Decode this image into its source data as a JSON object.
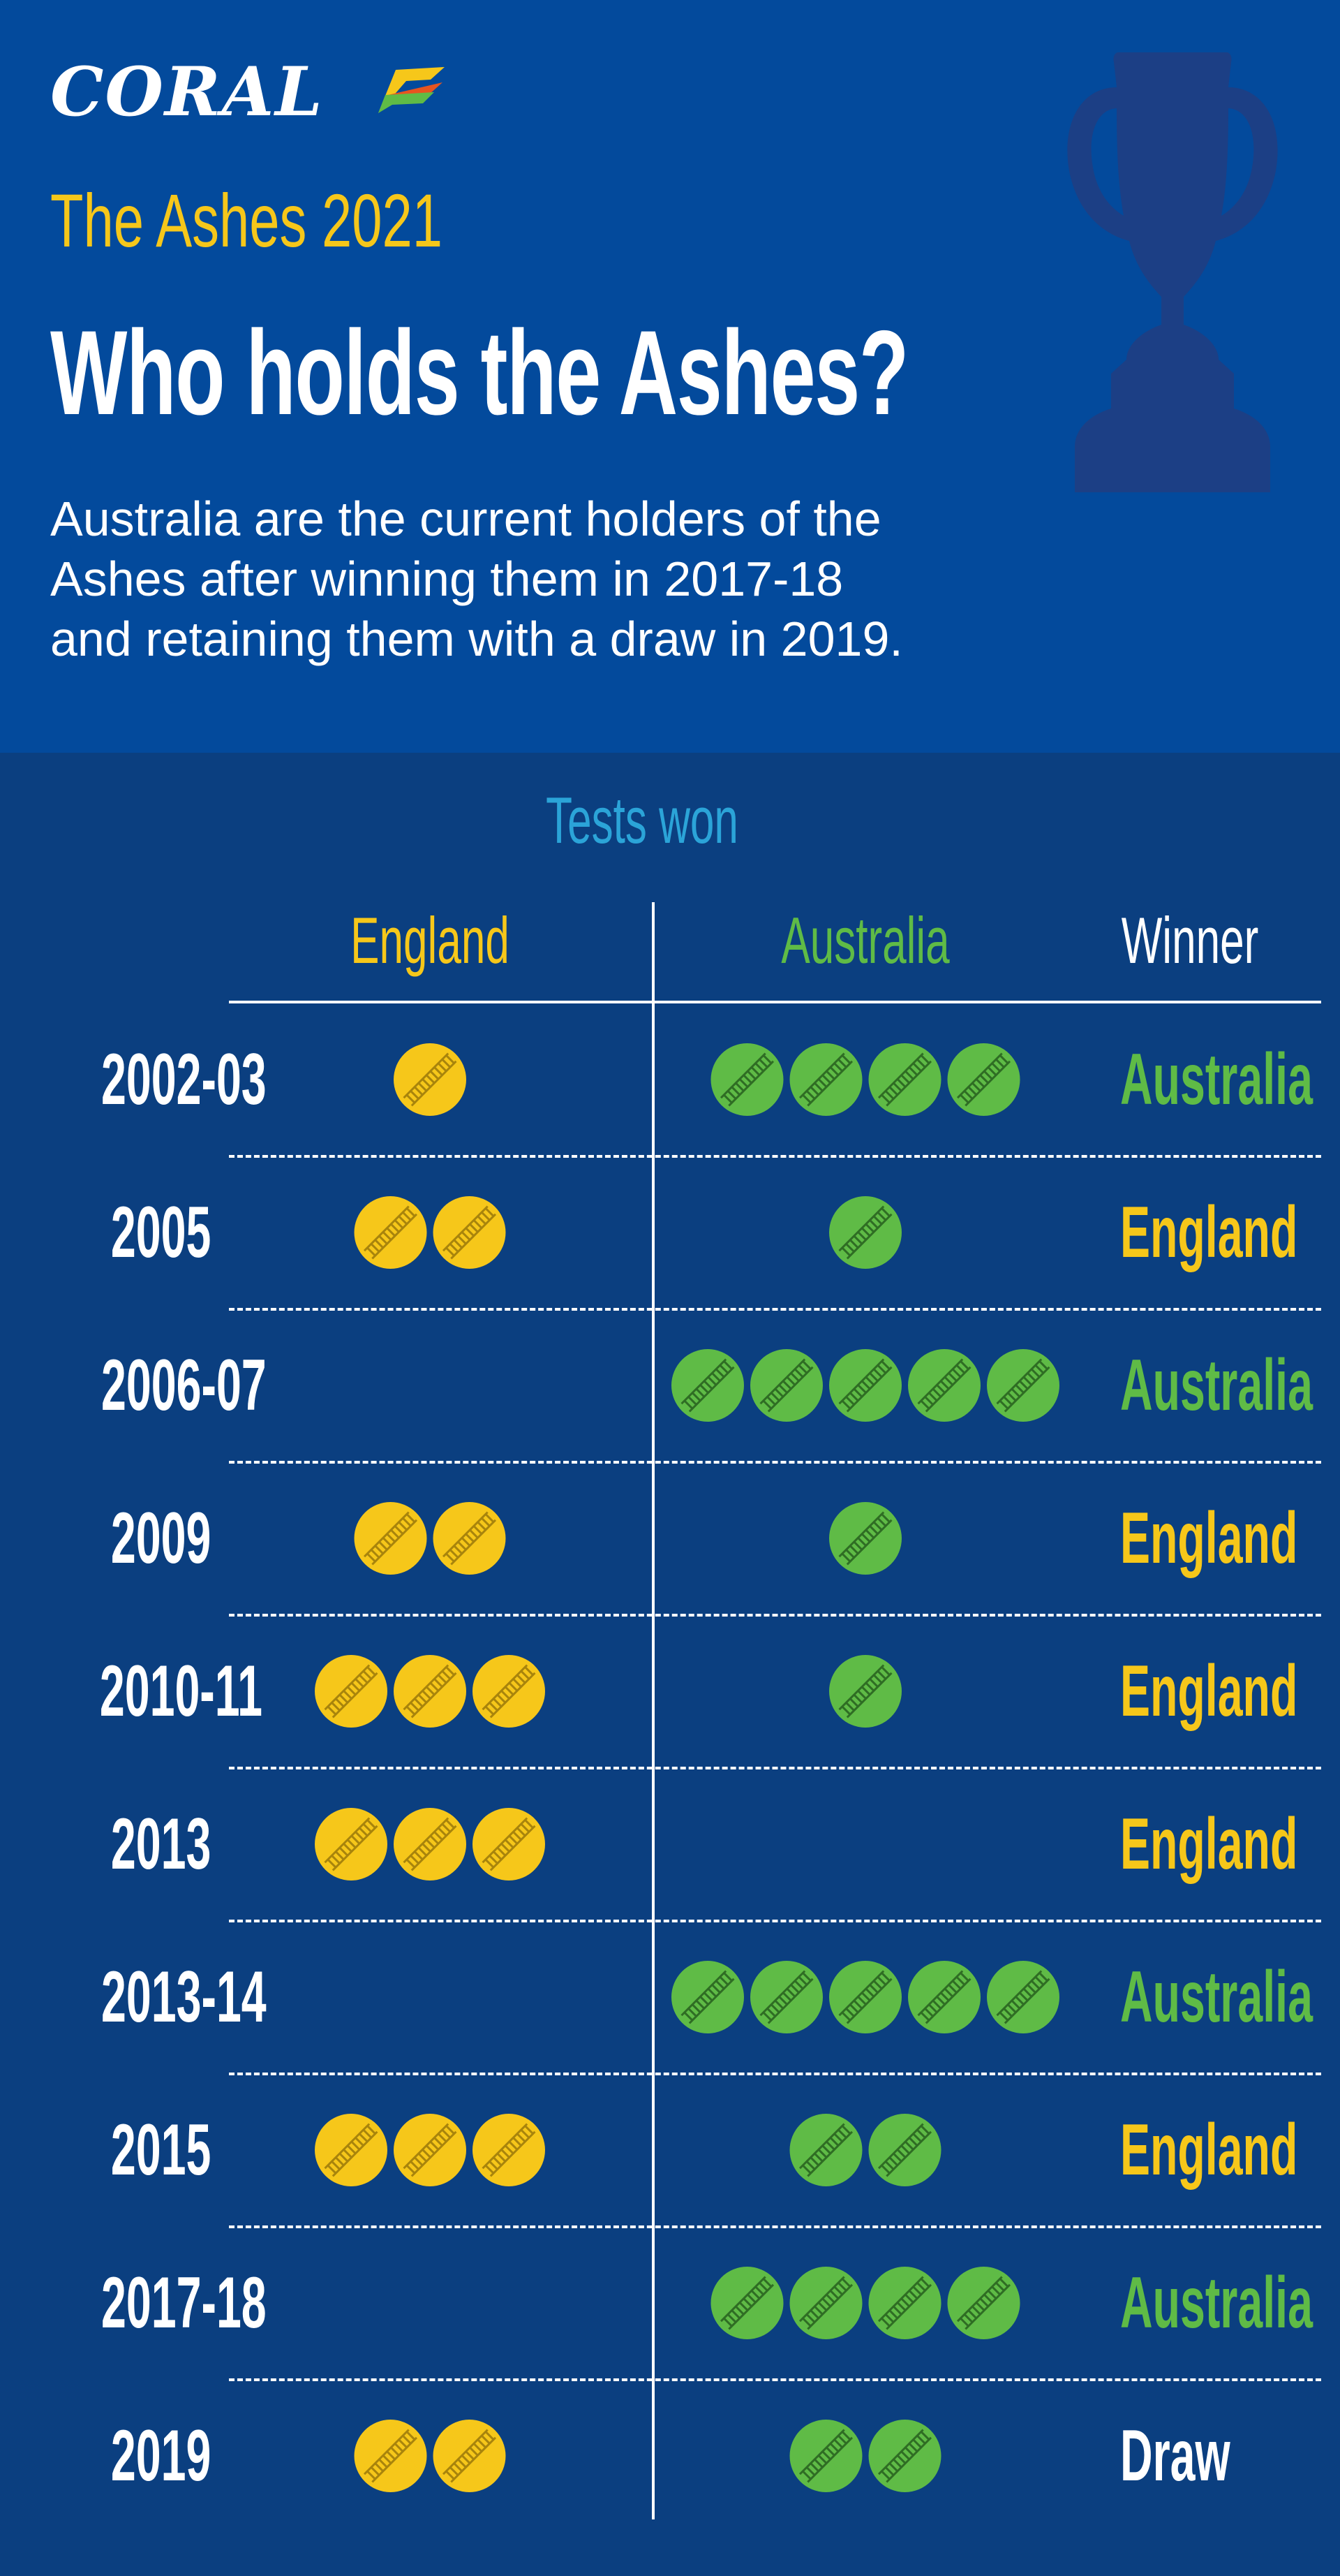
{
  "brand": {
    "name": "CORAL",
    "colors": {
      "header_bg": "#034a9c",
      "table_bg": "#0b3f80",
      "england": "#f6c71a",
      "australia": "#5fbb46",
      "draw": "#ffffff",
      "tests_won": "#2ba4d8"
    }
  },
  "header": {
    "subtitle": "The Ashes 2021",
    "title": "Who holds the Ashes?",
    "intro_lines": [
      "Australia are the current holders of the",
      "Ashes after winning them in 2017-18",
      "and retaining them with a draw in 2019."
    ],
    "trophy_icon": "ashes-urn-icon"
  },
  "chart_data": {
    "type": "table",
    "title": "Tests won",
    "columns": [
      "England",
      "Australia",
      "Winner"
    ],
    "rows": [
      {
        "series": "2002-03",
        "england": 1,
        "australia": 4,
        "winner": "Australia"
      },
      {
        "series": "2005",
        "england": 2,
        "australia": 1,
        "winner": "England"
      },
      {
        "series": "2006-07",
        "england": 0,
        "australia": 5,
        "winner": "Australia"
      },
      {
        "series": "2009",
        "england": 2,
        "australia": 1,
        "winner": "England"
      },
      {
        "series": "2010-11",
        "england": 3,
        "australia": 1,
        "winner": "England"
      },
      {
        "series": "2013",
        "england": 3,
        "australia": 0,
        "winner": "England"
      },
      {
        "series": "2013-14",
        "england": 0,
        "australia": 5,
        "winner": "Australia"
      },
      {
        "series": "2015",
        "england": 3,
        "australia": 2,
        "winner": "England"
      },
      {
        "series": "2017-18",
        "england": 0,
        "australia": 4,
        "winner": "Australia"
      },
      {
        "series": "2019",
        "england": 2,
        "australia": 2,
        "winner": "Draw"
      }
    ],
    "marker_icon": "cricket-ball-icon"
  }
}
